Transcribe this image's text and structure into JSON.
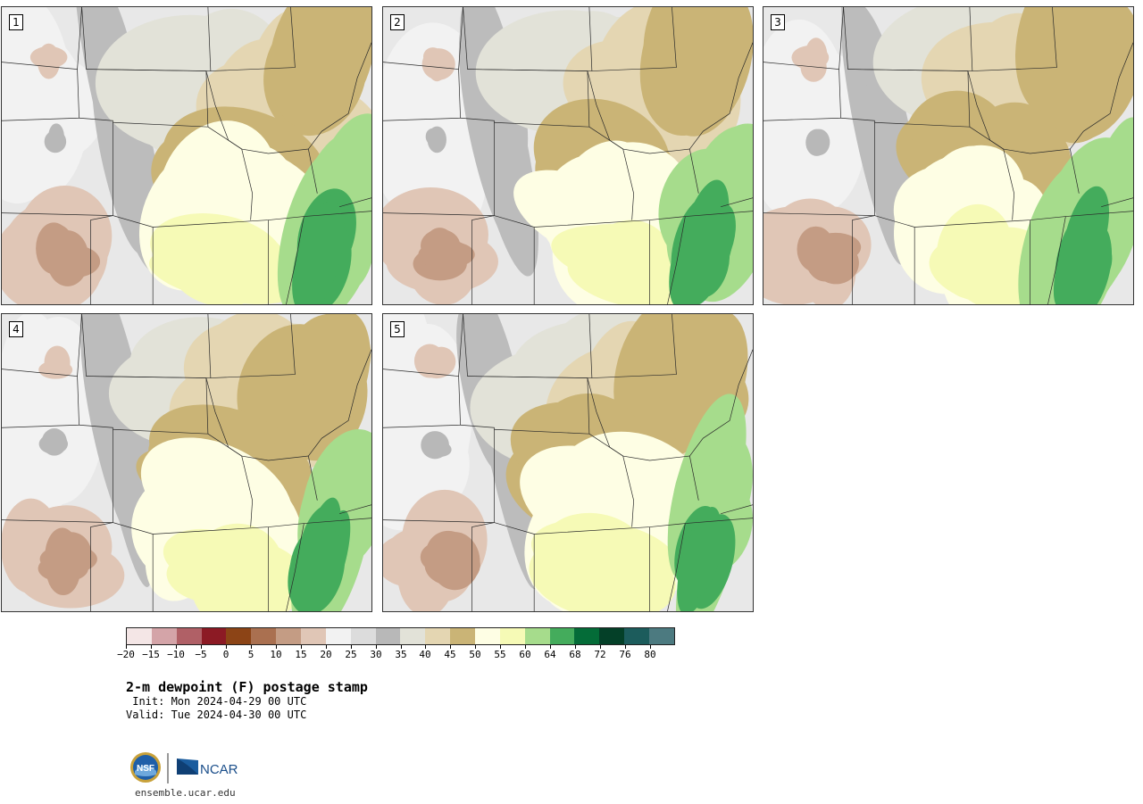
{
  "panels": [
    {
      "label": "1"
    },
    {
      "label": "2"
    },
    {
      "label": "3"
    },
    {
      "label": "4"
    },
    {
      "label": "5"
    }
  ],
  "colorbar": {
    "colors": [
      "#f4e6e6",
      "#d4a4a8",
      "#b06066",
      "#8c1a24",
      "#8c4416",
      "#aa7050",
      "#c49c84",
      "#e0c6b6",
      "#f2f2f2",
      "#dcdcdc",
      "#b8b8b8",
      "#e2e2d8",
      "#e4d6b2",
      "#cab476",
      "#fefee4",
      "#f6fab6",
      "#a6dc8c",
      "#44ac5c",
      "#046c38",
      "#044028",
      "#1c5c5c",
      "#4c7a80"
    ],
    "tick_labels": [
      "-20",
      "-15",
      "-10",
      "-5",
      "0",
      "5",
      "10",
      "15",
      "20",
      "25",
      "30",
      "35",
      "40",
      "45",
      "50",
      "55",
      "60",
      "64",
      "68",
      "72",
      "76",
      "80"
    ]
  },
  "title": "2-m dewpoint (F) postage stamp",
  "init": " Init: Mon 2024-04-29 00 UTC",
  "valid": "Valid: Tue 2024-04-30 00 UTC",
  "logos": {
    "nsf": "NSF",
    "ncar": "NCAR"
  },
  "website": "ensemble.ucar.edu"
}
